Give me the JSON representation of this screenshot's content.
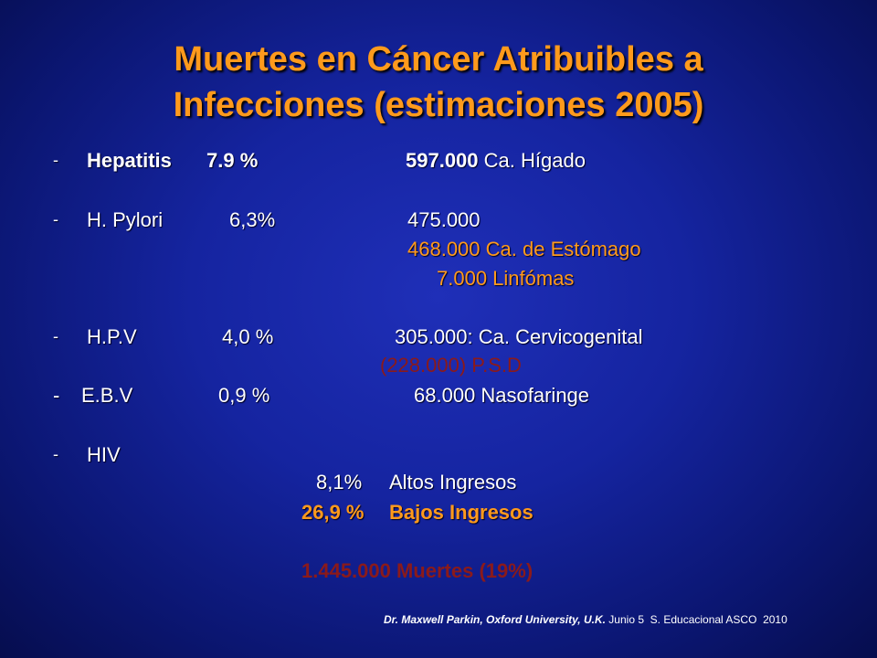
{
  "title_line1": "Muertes en Cáncer Atribuibles a",
  "title_line2": "Infecciones (estimaciones 2005)",
  "rows": {
    "hepatitis": {
      "dash": "-",
      "name": "Hepatitis",
      "pct": "7.9 %",
      "num": "597.000",
      "site": " Ca. Hígado"
    },
    "hpylori": {
      "dash": "-",
      "name": "H. Pylori",
      "pct": "6,3%",
      "num": "475.000",
      "sub1": "468.000 Ca. de Estómago",
      "sub2": "7.000 Linfómas"
    },
    "hpv": {
      "dash": "-",
      "name": "H.P.V",
      "pct": "4,0 %",
      "num": "305.000: Ca. Cervicogenital",
      "sub": "(228.000) P.S.D"
    },
    "ebv": {
      "dash": "-",
      "name": "E.B.V",
      "pct": "0,9 %",
      "num": "68.000 Nasofaringe"
    },
    "hiv": {
      "dash": "-",
      "name": "HIV",
      "high_pct": "8,1%",
      "high_label": "Altos Ingresos",
      "low_pct": "26,9 %",
      "low_label": "Bajos Ingresos"
    }
  },
  "total": "1.445.000 Muertes (19%)",
  "credit": {
    "author": "Dr. Maxwell Parkin, Oxford University, U.K.",
    "event": " Junio 5  S. Educacional ASCO  2010"
  }
}
